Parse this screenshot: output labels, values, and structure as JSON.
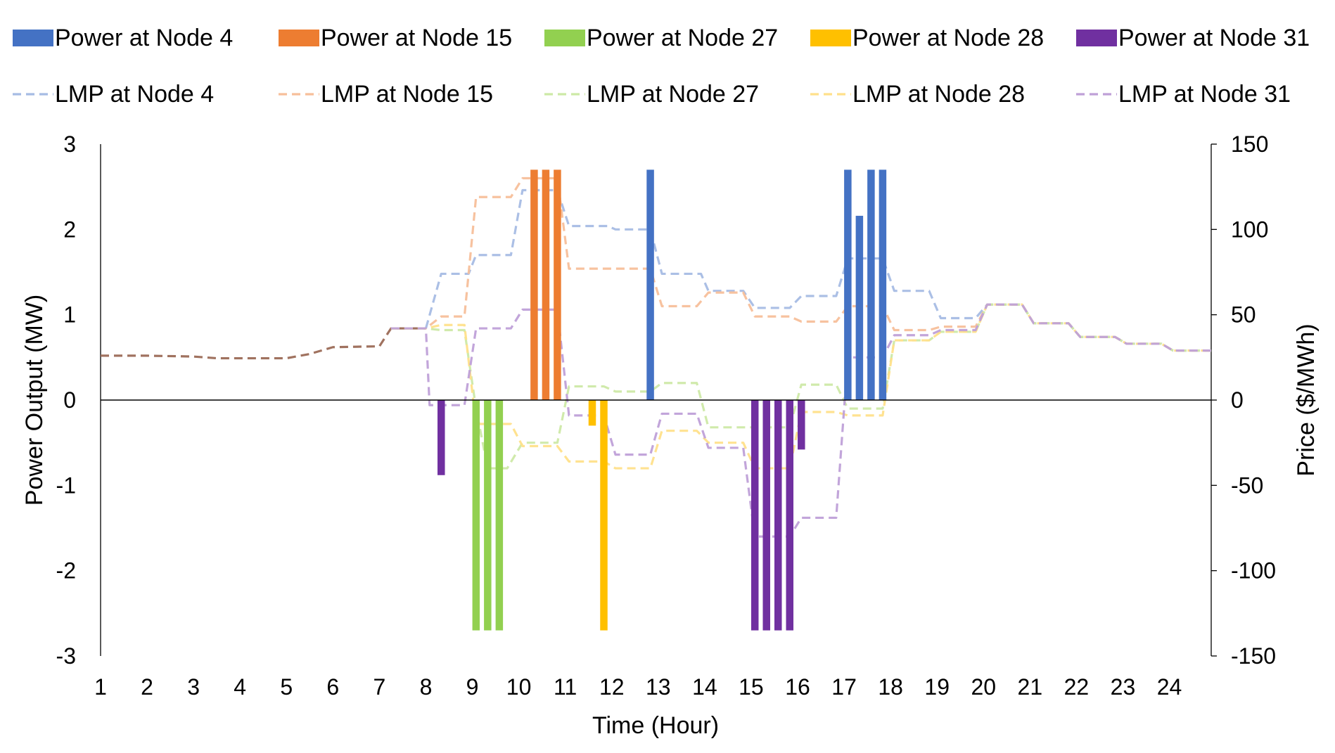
{
  "chart_data": {
    "type": "bar+line",
    "xlabel": "Time (Hour)",
    "ylabel_left": "Power Output (MW)",
    "ylabel_right": "Price ($/MWh)",
    "xlim": [
      1,
      24.9
    ],
    "ylim_left": [
      -3,
      3
    ],
    "ylim_right": [
      -150,
      150
    ],
    "x_ticks": [
      "1",
      "2",
      "3",
      "4",
      "5",
      "6",
      "7",
      "8",
      "9",
      "10",
      "11",
      "12",
      "13",
      "14",
      "15",
      "16",
      "17",
      "18",
      "19",
      "20",
      "21",
      "22",
      "23",
      "24"
    ],
    "y_ticks_left": [
      "3",
      "2",
      "1",
      "0",
      "-1",
      "-2",
      "-3"
    ],
    "y_ticks_right": [
      "150",
      "100",
      "50",
      "0",
      "-50",
      "-100",
      "-150"
    ],
    "colors": {
      "node4": "#4472C4",
      "node15": "#ED7D31",
      "node27": "#92D050",
      "node28": "#FFC000",
      "node31": "#7030A0",
      "lmp4": "#A6BCE4",
      "lmp15": "#F7BF9A",
      "lmp27": "#CDE9A6",
      "lmp28": "#FFE08A",
      "lmp31": "#BFA0D8",
      "shared": "#9B6A56"
    },
    "legend_bars": [
      {
        "key": "node4",
        "label": "Power at Node 4"
      },
      {
        "key": "node15",
        "label": "Power at Node 15"
      },
      {
        "key": "node27",
        "label": "Power at Node 27"
      },
      {
        "key": "node28",
        "label": "Power at Node 28"
      },
      {
        "key": "node31",
        "label": "Power at Node 31"
      }
    ],
    "legend_lines": [
      {
        "key": "lmp4",
        "label": "LMP at Node 4"
      },
      {
        "key": "lmp15",
        "label": "LMP at Node 15"
      },
      {
        "key": "lmp27",
        "label": "LMP at Node 27"
      },
      {
        "key": "lmp28",
        "label": "LMP at Node 28"
      },
      {
        "key": "lmp31",
        "label": "LMP at Node 31"
      }
    ],
    "bars": [
      {
        "series": "node31",
        "x": 8.33,
        "value": -0.88
      },
      {
        "series": "node27",
        "x": 9.08,
        "value": -2.7
      },
      {
        "series": "node27",
        "x": 9.33,
        "value": -2.7
      },
      {
        "series": "node27",
        "x": 9.58,
        "value": -2.7
      },
      {
        "series": "node15",
        "x": 10.33,
        "value": 2.7
      },
      {
        "series": "node15",
        "x": 10.58,
        "value": 2.7
      },
      {
        "series": "node15",
        "x": 10.83,
        "value": 2.7
      },
      {
        "series": "node28",
        "x": 11.58,
        "value": -0.3
      },
      {
        "series": "node28",
        "x": 11.83,
        "value": -2.7
      },
      {
        "series": "node4",
        "x": 12.83,
        "value": 2.7
      },
      {
        "series": "node31",
        "x": 15.08,
        "value": -2.7
      },
      {
        "series": "node31",
        "x": 15.33,
        "value": -2.7
      },
      {
        "series": "node31",
        "x": 15.58,
        "value": -2.7
      },
      {
        "series": "node31",
        "x": 15.83,
        "value": -2.7
      },
      {
        "series": "node31",
        "x": 16.08,
        "value": -0.58
      },
      {
        "series": "node4",
        "x": 17.08,
        "value": 2.7
      },
      {
        "series": "node4",
        "x": 17.33,
        "value": 2.16
      },
      {
        "series": "node4",
        "x": 17.58,
        "value": 2.7
      },
      {
        "series": "node4",
        "x": 17.83,
        "value": 2.7
      }
    ],
    "lines": [
      {
        "series": "shared",
        "x": [
          1,
          2,
          3,
          3.5,
          4,
          5,
          5.5,
          6,
          7,
          7.25,
          8
        ],
        "y": [
          26,
          26,
          25.5,
          24.5,
          24.5,
          24.5,
          27,
          31,
          31.5,
          42,
          42
        ]
      },
      {
        "series": "lmp4",
        "x": [
          8,
          8,
          8.33,
          8.92,
          9.08,
          9.83,
          10.08,
          10.83,
          11.08,
          11.92,
          12.08,
          12.83,
          13.08,
          13.92,
          14.08,
          14.83,
          15.08,
          15.83,
          16.08,
          16.83,
          17.08,
          17.83,
          18.08,
          18.83,
          19.08,
          19.83,
          20.08,
          20.83,
          21.08,
          21.83,
          22.08,
          22.83,
          23.08,
          23.83,
          24.08,
          24.9
        ],
        "y": [
          42,
          42,
          74,
          74,
          85,
          85,
          123,
          123,
          102,
          102,
          100,
          100,
          74,
          74,
          64,
          64,
          54,
          54,
          61,
          61,
          83,
          83,
          64,
          64,
          48,
          48,
          56,
          56,
          45,
          45,
          37,
          37,
          33,
          33,
          29,
          29
        ]
      },
      {
        "series": "lmp15",
        "x": [
          7.25,
          8,
          8.33,
          8.83,
          9.08,
          9.83,
          10.08,
          10.83,
          11.08,
          12.83,
          13.08,
          13.83,
          14.08,
          14.83,
          15.08,
          15.83,
          16.08,
          16.83,
          17.08,
          17.83,
          18.08,
          18.83,
          19.08,
          19.83,
          20.08,
          20.83,
          21.08,
          21.83,
          22.08,
          22.83,
          23.08,
          23.83,
          24.08,
          24.9
        ],
        "y": [
          42,
          42,
          49,
          49,
          119,
          119,
          130,
          130,
          77,
          77,
          55,
          55,
          63,
          63,
          49,
          49,
          46,
          46,
          55,
          55,
          41,
          41,
          43,
          43,
          56,
          56,
          45,
          45,
          37,
          37,
          33,
          33,
          29,
          29
        ]
      },
      {
        "series": "lmp27",
        "x": [
          7.25,
          8,
          8.33,
          8.83,
          9.08,
          9.33,
          9.75,
          10.08,
          10.83,
          11.08,
          11.83,
          12.08,
          12.83,
          13.08,
          13.83,
          14.08,
          14.83,
          15.08,
          15.83,
          16.08,
          16.83,
          17.08,
          17.83,
          18.08,
          18.83,
          19.08,
          19.83,
          20.08,
          20.83,
          21.08,
          21.83,
          22.08,
          22.83,
          23.08,
          23.83,
          24.08,
          24.9
        ],
        "y": [
          42,
          42,
          41,
          41,
          -5,
          -40,
          -40,
          -25,
          -25,
          8,
          8,
          5,
          5,
          10,
          10,
          -16,
          -16,
          -16,
          -16,
          9,
          9,
          -5,
          -5,
          35,
          35,
          40,
          40,
          56,
          56,
          45,
          45,
          37,
          37,
          33,
          33,
          29,
          29
        ]
      },
      {
        "series": "lmp28",
        "x": [
          7.25,
          8,
          8.33,
          8.83,
          9.08,
          9.83,
          10.08,
          10.83,
          11.08,
          11.83,
          12.08,
          12.83,
          13.08,
          13.83,
          14.08,
          14.83,
          15.08,
          15.83,
          16.08,
          16.83,
          17.08,
          17.83,
          18.08,
          18.83,
          19.08,
          19.83,
          20.08,
          20.83,
          21.08,
          21.83,
          22.08,
          22.83,
          23.08,
          23.83,
          24.08,
          24.9
        ],
        "y": [
          42,
          42,
          44,
          44,
          -14,
          -14,
          -27,
          -27,
          -36,
          -36,
          -40,
          -40,
          -18,
          -18,
          -25,
          -25,
          -40,
          -40,
          -7,
          -7,
          -9,
          -9,
          35,
          35,
          40,
          40,
          56,
          56,
          45,
          45,
          37,
          37,
          33,
          33,
          29,
          29
        ]
      },
      {
        "series": "lmp31",
        "x": [
          7.25,
          8,
          8.08,
          8.83,
          9.08,
          9.83,
          10.08,
          10.83,
          11.08,
          11.83,
          12.08,
          12.83,
          13.08,
          13.83,
          14.08,
          14.83,
          15.08,
          15.83,
          16.08,
          16.83,
          17.08,
          17.83,
          18.08,
          18.83,
          19.08,
          19.83,
          20.08,
          20.83,
          21.08,
          21.83,
          22.08,
          22.83,
          23.08,
          23.83,
          24.08,
          24.9
        ],
        "y": [
          42,
          42,
          -3,
          -3,
          42,
          42,
          53,
          53,
          -9,
          -9,
          -32,
          -32,
          -8,
          -8,
          -28,
          -28,
          -80,
          -80,
          -69,
          -69,
          25,
          25,
          38,
          38,
          41,
          41,
          56,
          56,
          45,
          45,
          37,
          37,
          33,
          33,
          29,
          29
        ]
      }
    ]
  }
}
